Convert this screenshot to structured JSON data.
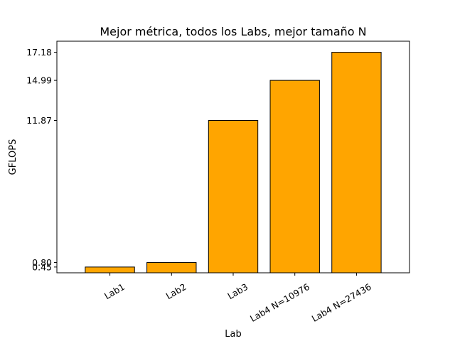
{
  "chart_data": {
    "type": "bar",
    "title": "Mejor métrica, todos los Labs, mejor tamaño N",
    "xlabel": "Lab",
    "ylabel": "GFLOPS",
    "categories": [
      "Lab1",
      "Lab2",
      "Lab3",
      "Lab4 N=10976",
      "Lab4 N=27436"
    ],
    "values": [
      0.45,
      0.8,
      11.87,
      14.99,
      17.18
    ],
    "ytick_labels": [
      "0.45",
      "0.80",
      "11.87",
      "14.99",
      "17.18"
    ],
    "ylim": [
      0,
      18.04
    ],
    "bar_color": "#FFA500",
    "edge_color": "#000000",
    "grid": false,
    "xtick_rotation": 30
  }
}
